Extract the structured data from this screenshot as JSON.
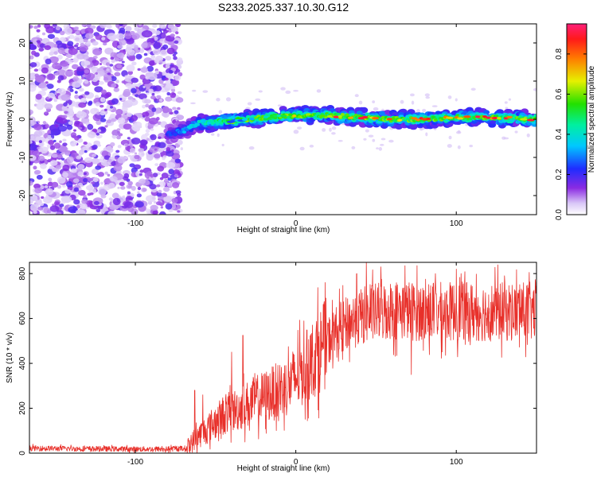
{
  "title": "S233.2025.337.10.30.G12",
  "colors": {
    "line": "#e8302a",
    "axis": "#000000",
    "background": "#ffffff"
  },
  "chart_data": [
    {
      "type": "heatmap",
      "name": "spectrogram",
      "xlabel": "Height of straight line (km)",
      "ylabel": "Frequency (Hz)",
      "xlim": [
        -166,
        150
      ],
      "ylim": [
        -25,
        25
      ],
      "xticks": [
        -100,
        0,
        100
      ],
      "yticks": [
        -20,
        -10,
        0,
        10,
        20
      ],
      "noise_region_x": [
        -166,
        -75
      ],
      "ridge": {
        "description": "frequency of peak spectral amplitude vs height",
        "x": [
          -80,
          -70,
          -60,
          -40,
          -20,
          0,
          20,
          40,
          60,
          80,
          100,
          120,
          150
        ],
        "y": [
          -4,
          -3,
          -1,
          -0.5,
          0.5,
          1,
          1,
          0.5,
          0,
          0,
          0.5,
          0.5,
          0
        ]
      },
      "colorbar": {
        "label": "Normalized spectral amplitude",
        "range": [
          0,
          0.95
        ],
        "ticks": [
          0.0,
          0.2,
          0.4,
          0.6,
          0.8
        ],
        "tick_labels": [
          "0.0",
          "0.2",
          "0.4",
          "0.6",
          "0.8"
        ]
      }
    },
    {
      "type": "line",
      "name": "snr",
      "xlabel": "Height of straight line (km)",
      "ylabel": "SNR (10 * v/v)",
      "xlim": [
        -166,
        150
      ],
      "ylim": [
        0,
        850
      ],
      "xticks": [
        -100,
        0,
        100
      ],
      "yticks": [
        0,
        200,
        400,
        600,
        800
      ],
      "trend": {
        "x": [
          -166,
          -140,
          -100,
          -80,
          -68,
          -62,
          -55,
          -45,
          -35,
          -25,
          -15,
          -5,
          5,
          15,
          25,
          35,
          45,
          60,
          80,
          100,
          120,
          150
        ],
        "y": [
          22,
          20,
          18,
          18,
          22,
          70,
          110,
          170,
          200,
          235,
          265,
          300,
          370,
          460,
          540,
          590,
          620,
          640,
          630,
          630,
          630,
          630
        ]
      },
      "spikes": [
        {
          "x": -63,
          "y": 280
        },
        {
          "x": -58,
          "y": 260
        },
        {
          "x": -40,
          "y": 450
        },
        {
          "x": -33,
          "y": 525
        },
        {
          "x": 38,
          "y": 800
        },
        {
          "x": 44,
          "y": 850
        },
        {
          "x": 53,
          "y": 830
        },
        {
          "x": 68,
          "y": 835
        },
        {
          "x": 72,
          "y": 350
        },
        {
          "x": 87,
          "y": 800
        },
        {
          "x": 100,
          "y": 820
        },
        {
          "x": 103,
          "y": 800
        },
        {
          "x": 130,
          "y": 790
        },
        {
          "x": 148,
          "y": 720
        }
      ]
    }
  ]
}
